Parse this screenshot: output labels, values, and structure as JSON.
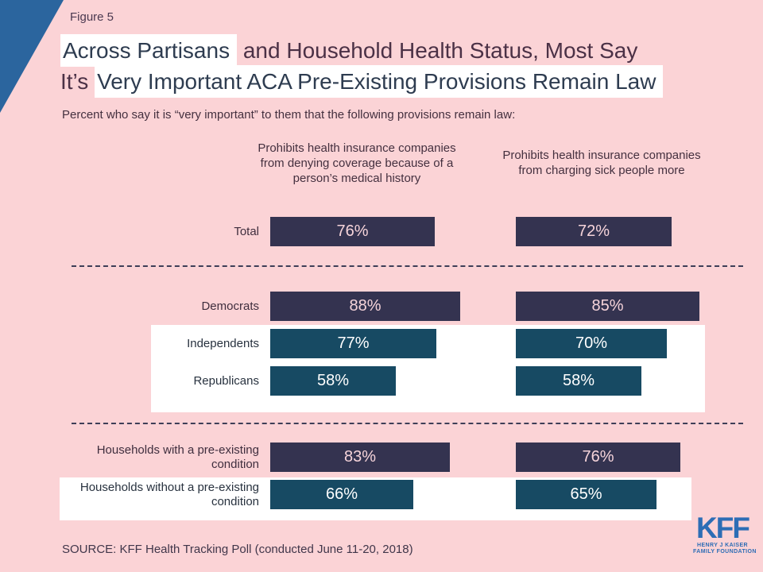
{
  "figure_label": "Figure 5",
  "title": {
    "full_text": "Across Partisans and Household Health Status, Most Say It’s Very Important ACA Pre-Existing Provisions Remain Law",
    "lines": [
      {
        "segments": [
          {
            "text": "Across Partisans",
            "highlight": true
          },
          {
            "text": " and Household Health Status, Most Say",
            "highlight": false
          }
        ]
      },
      {
        "segments": [
          {
            "text": "It’s ",
            "highlight": false
          },
          {
            "text": "Very Important ACA Pre-Existing Provisions Remain Law",
            "highlight": true
          }
        ]
      }
    ]
  },
  "subtitle": "Percent who say it is “very important” to them that the following provisions remain law:",
  "source": "SOURCE: KFF Health Tracking Poll (conducted June 11-20, 2018)",
  "logo": {
    "text": "KFF",
    "line1": "HENRY J KAISER",
    "line2": "FAMILY FOUNDATION"
  },
  "colors": {
    "background_pink": "#fbd3d6",
    "corner_triangle_blue": "#2b659e",
    "bar_navy": "#343350",
    "bar_teal": "#174a63",
    "value_on_navy": "#f6d4da",
    "value_on_teal": "#ffffff",
    "label_on_pink": "#3f2e3e",
    "label_on_white": "#28323f",
    "kff_blue": "#2d6db5"
  },
  "chart_data": {
    "type": "bar",
    "orientation": "horizontal",
    "title": "Across Partisans and Household Health Status, Most Say It’s Very Important ACA Pre-Existing Provisions Remain Law",
    "subtitle": "Percent who say it is “very important” to them that the following provisions remain law:",
    "unit": "%",
    "xlim": [
      0,
      100
    ],
    "grid": false,
    "legend": "none",
    "columns": [
      "Prohibits health insurance companies from denying coverage because of a person’s medical history",
      "Prohibits health insurance companies from charging sick people more"
    ],
    "categories": [
      "Total",
      "Democrats",
      "Independents",
      "Republicans",
      "Households with a pre-existing condition",
      "Households without a pre-existing condition"
    ],
    "series": [
      {
        "name": "Prohibits health insurance companies from denying coverage because of a person’s medical history",
        "values": [
          76,
          88,
          77,
          58,
          83,
          66
        ]
      },
      {
        "name": "Prohibits health insurance companies from charging sick people more",
        "values": [
          72,
          85,
          70,
          58,
          76,
          65
        ]
      }
    ],
    "row_styles": [
      "navy",
      "navy",
      "teal",
      "teal",
      "navy",
      "teal"
    ]
  }
}
